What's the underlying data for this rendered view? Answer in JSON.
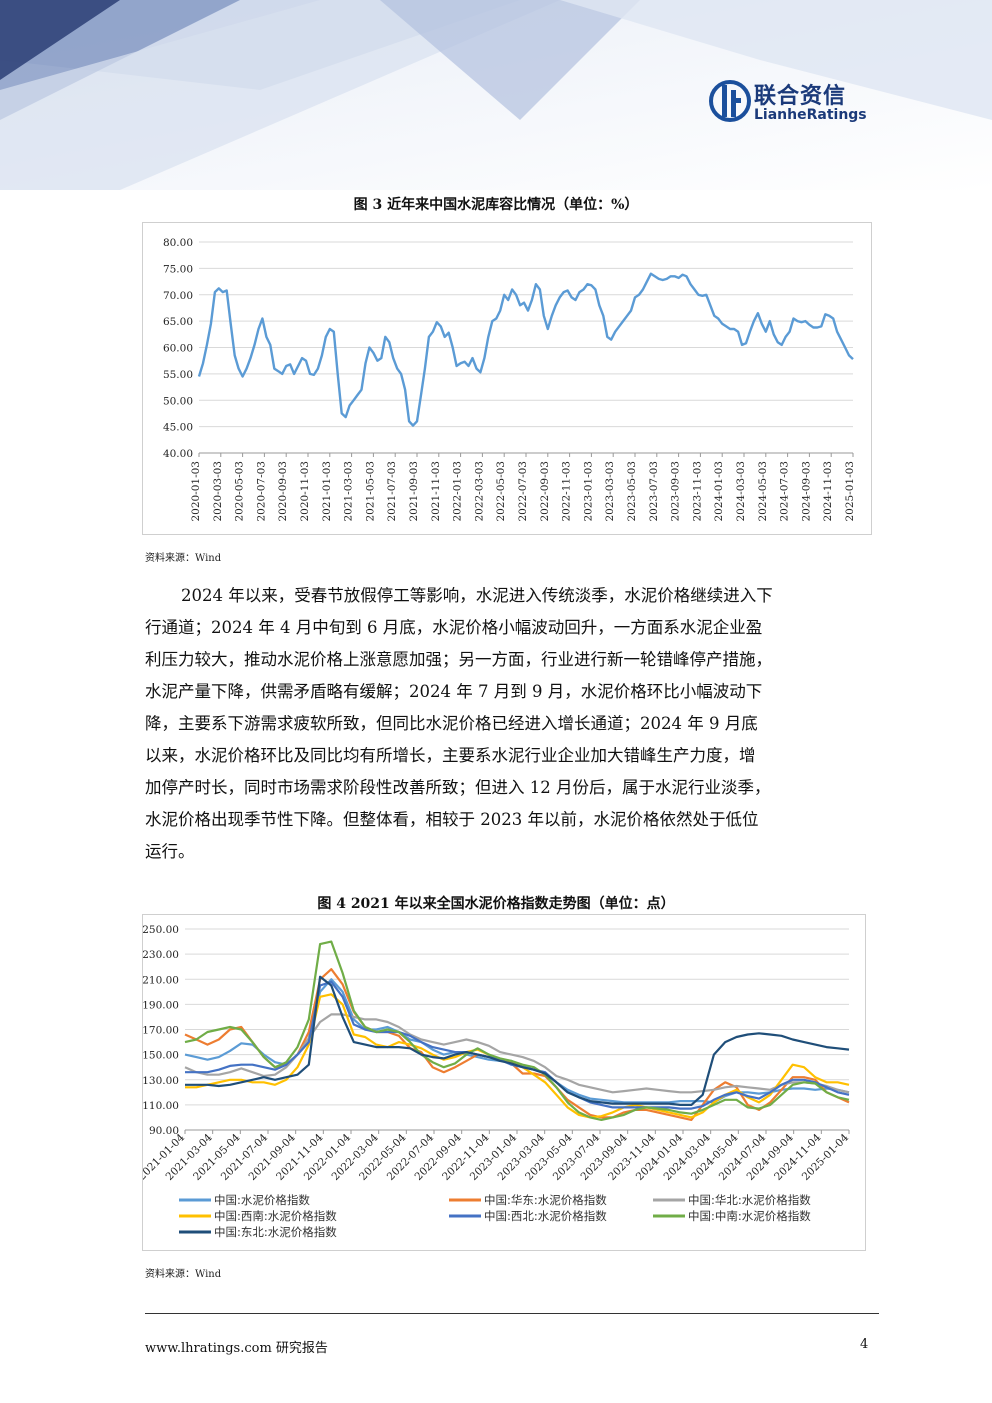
{
  "header": {
    "logo_cn": "联合资信",
    "logo_en": "LianheRatings"
  },
  "figure3": {
    "title": "图 3    近年来中国水泥库容比情况（单位：%）",
    "source": "资料来源：Wind",
    "chart_data": {
      "type": "line",
      "ylim": [
        40,
        80
      ],
      "y_ticks": [
        "80.00",
        "75.00",
        "70.00",
        "65.00",
        "60.00",
        "55.00",
        "50.00",
        "45.00",
        "40.00"
      ],
      "x_ticks": [
        "2020-01-03",
        "2020-03-03",
        "2020-05-03",
        "2020-07-03",
        "2020-09-03",
        "2020-11-03",
        "2021-01-03",
        "2021-03-03",
        "2021-05-03",
        "2021-07-03",
        "2021-09-03",
        "2021-11-03",
        "2022-01-03",
        "2022-03-03",
        "2022-05-03",
        "2022-07-03",
        "2022-09-03",
        "2022-11-03",
        "2023-01-03",
        "2023-03-03",
        "2023-05-03",
        "2023-07-03",
        "2023-09-03",
        "2023-11-03",
        "2024-01-03",
        "2024-03-03",
        "2024-05-03",
        "2024-07-03",
        "2024-09-03",
        "2024-11-03",
        "2025-01-03"
      ],
      "series": [
        {
          "color": "#5b9bd5",
          "values": [
            54.5,
            57,
            60.5,
            64.5,
            70.5,
            71.2,
            70.5,
            70.8,
            64.5,
            58.5,
            56,
            54.5,
            56,
            58,
            60.5,
            63.5,
            65.5,
            62,
            60.5,
            56,
            55.5,
            55,
            56.5,
            56.8,
            55,
            56.5,
            58,
            57.5,
            55,
            54.8,
            56,
            58.5,
            62,
            63.5,
            63,
            55,
            47.5,
            46.8,
            49,
            50,
            51,
            52,
            57,
            60,
            59,
            57.5,
            58,
            62,
            61,
            58,
            56,
            55,
            52,
            46,
            45.2,
            46,
            51,
            56,
            62,
            63,
            64.8,
            64,
            62,
            62.8,
            60,
            56.5,
            57,
            57.3,
            56.5,
            58,
            56,
            55.3,
            58,
            62,
            65,
            65.5,
            67,
            70,
            69,
            71,
            70,
            68,
            68.5,
            67,
            69,
            72,
            71,
            66,
            63.5,
            66,
            68,
            69.5,
            70.5,
            70.8,
            69.5,
            69,
            70.5,
            71,
            72,
            71.8,
            71,
            68,
            66,
            62,
            61.5,
            63,
            64,
            65,
            66,
            67,
            69.5,
            70,
            71,
            72.5,
            74,
            73.5,
            73,
            72.8,
            73,
            73.5,
            73.5,
            73.2,
            73.8,
            73.5,
            72,
            71,
            70,
            69.8,
            70,
            68,
            66,
            65.5,
            64.5,
            64,
            63.5,
            63.5,
            63,
            60.5,
            60.8,
            63,
            65,
            66.5,
            64.5,
            63,
            65,
            62.5,
            61,
            60.5,
            62,
            63,
            65.5,
            65,
            64.8,
            65,
            64.3,
            63.8,
            63.8,
            64,
            66.3,
            66,
            65.5,
            63,
            61.5,
            60,
            58.5,
            57.8
          ]
        }
      ]
    }
  },
  "paragraph": {
    "lines": [
      "2024 年以来，受春节放假停工等影响，水泥进入传统淡季，水泥价格继续进入下",
      "行通道；2024 年 4 月中旬到 6 月底，水泥价格小幅波动回升，一方面系水泥企业盈",
      "利压力较大，推动水泥价格上涨意愿加强；另一方面，行业进行新一轮错峰停产措施，",
      "水泥产量下降，供需矛盾略有缓解；2024 年 7 月到 9 月，水泥价格环比小幅波动下",
      "降，主要系下游需求疲软所致，但同比水泥价格已经进入增长通道；2024 年 9 月底",
      "以来，水泥价格环比及同比均有所增长，主要系水泥行业企业加大错峰生产力度，增",
      "加停产时长，同时市场需求阶段性改善所致；但进入 12 月份后，属于水泥行业淡季，",
      "水泥价格出现季节性下降。但整体看，相较于 2023 年以前，水泥价格依然处于低位",
      "运行。"
    ]
  },
  "figure4": {
    "title": "图 4    2021 年以来全国水泥价格指数走势图（单位：点）",
    "source": "资料来源：Wind",
    "chart_data": {
      "type": "line",
      "ylim": [
        90,
        250
      ],
      "y_ticks": [
        "250.00",
        "230.00",
        "210.00",
        "190.00",
        "170.00",
        "150.00",
        "130.00",
        "110.00",
        "90.00"
      ],
      "x_ticks": [
        "2021-01-04",
        "2021-03-04",
        "2021-05-04",
        "2021-07-04",
        "2021-09-04",
        "2021-11-04",
        "2022-01-04",
        "2022-03-04",
        "2022-05-04",
        "2022-07-04",
        "2022-09-04",
        "2022-11-04",
        "2023-01-04",
        "2023-03-04",
        "2023-05-04",
        "2023-07-04",
        "2023-09-04",
        "2023-11-04",
        "2024-01-04",
        "2024-03-04",
        "2024-05-04",
        "2024-07-04",
        "2024-09-04",
        "2024-11-04",
        "2025-01-04"
      ],
      "legend_position": "bottom",
      "series": [
        {
          "name": "中国:水泥价格指数",
          "color": "#5b9bd5",
          "values": [
            150,
            148,
            146,
            148,
            153,
            159,
            158,
            150,
            144,
            142,
            150,
            163,
            200,
            210,
            200,
            178,
            170,
            170,
            172,
            168,
            162,
            160,
            154,
            150,
            152,
            150,
            148,
            146,
            145,
            145,
            141,
            138,
            135,
            128,
            122,
            118,
            115,
            114,
            113,
            112,
            112,
            112,
            112,
            112,
            113,
            113,
            113,
            112,
            117,
            120,
            120,
            119,
            120,
            122,
            123,
            123,
            122,
            123,
            122,
            120
          ]
        },
        {
          "name": "中国:华东:水泥价格指数",
          "color": "#ed7d31",
          "values": [
            166,
            162,
            158,
            162,
            170,
            172,
            160,
            148,
            140,
            142,
            150,
            168,
            210,
            218,
            206,
            184,
            172,
            168,
            168,
            165,
            155,
            152,
            140,
            136,
            140,
            145,
            150,
            148,
            146,
            143,
            135,
            135,
            133,
            124,
            114,
            108,
            102,
            100,
            100,
            104,
            106,
            106,
            104,
            102,
            100,
            98,
            110,
            122,
            128,
            124,
            110,
            106,
            112,
            122,
            132,
            132,
            130,
            120,
            116,
            112
          ]
        },
        {
          "name": "中国:华北:水泥价格指数",
          "color": "#a5a5a5",
          "values": [
            140,
            136,
            134,
            134,
            136,
            139,
            136,
            133,
            134,
            140,
            150,
            163,
            176,
            182,
            182,
            180,
            178,
            178,
            176,
            172,
            166,
            162,
            160,
            158,
            160,
            162,
            160,
            157,
            152,
            150,
            148,
            145,
            140,
            133,
            130,
            126,
            124,
            122,
            120,
            121,
            122,
            123,
            122,
            121,
            120,
            120,
            121,
            122,
            124,
            125,
            124,
            123,
            122,
            126,
            128,
            128,
            127,
            125,
            122,
            120
          ]
        },
        {
          "name": "中国:西南:水泥价格指数",
          "color": "#ffc000",
          "values": [
            124,
            124,
            126,
            128,
            130,
            130,
            128,
            128,
            126,
            130,
            140,
            158,
            196,
            198,
            190,
            166,
            164,
            158,
            156,
            160,
            158,
            155,
            150,
            146,
            148,
            152,
            154,
            150,
            146,
            144,
            140,
            134,
            128,
            118,
            108,
            102,
            100,
            101,
            104,
            108,
            110,
            108,
            106,
            104,
            102,
            100,
            104,
            112,
            118,
            122,
            116,
            112,
            118,
            130,
            142,
            140,
            132,
            128,
            128,
            126
          ]
        },
        {
          "name": "中国:西北:水泥价格指数",
          "color": "#4472c4",
          "values": [
            136,
            136,
            136,
            138,
            141,
            142,
            142,
            140,
            138,
            142,
            150,
            160,
            205,
            208,
            196,
            174,
            170,
            168,
            168,
            168,
            165,
            160,
            156,
            154,
            152,
            152,
            150,
            148,
            146,
            142,
            140,
            138,
            136,
            128,
            120,
            116,
            112,
            110,
            108,
            108,
            108,
            108,
            108,
            108,
            107,
            107,
            109,
            114,
            118,
            120,
            117,
            115,
            120,
            126,
            130,
            130,
            128,
            124,
            120,
            118
          ]
        },
        {
          "name": "中国:中南:水泥价格指数",
          "color": "#70ad47",
          "values": [
            160,
            162,
            168,
            170,
            172,
            170,
            160,
            148,
            140,
            144,
            156,
            178,
            238,
            240,
            215,
            185,
            172,
            168,
            170,
            168,
            160,
            150,
            144,
            140,
            143,
            150,
            155,
            150,
            147,
            145,
            142,
            140,
            134,
            124,
            112,
            104,
            100,
            98,
            100,
            102,
            106,
            108,
            107,
            106,
            104,
            103,
            106,
            110,
            114,
            114,
            108,
            107,
            110,
            118,
            126,
            128,
            127,
            120,
            116,
            114
          ]
        },
        {
          "name": "中国:东北:水泥价格指数",
          "color": "#1f4e79",
          "values": [
            126,
            126,
            126,
            125,
            126,
            128,
            130,
            132,
            130,
            132,
            134,
            142,
            212,
            205,
            180,
            160,
            158,
            156,
            156,
            156,
            155,
            150,
            148,
            147,
            150,
            152,
            150,
            148,
            145,
            143,
            140,
            138,
            135,
            128,
            120,
            116,
            113,
            112,
            111,
            111,
            111,
            111,
            111,
            111,
            110,
            110,
            118,
            150,
            160,
            164,
            166,
            167,
            166,
            165,
            162,
            160,
            158,
            156,
            155,
            154
          ]
        }
      ]
    }
  },
  "footer": {
    "website": "www.lhratings.com    研究报告",
    "page_number": "4"
  }
}
